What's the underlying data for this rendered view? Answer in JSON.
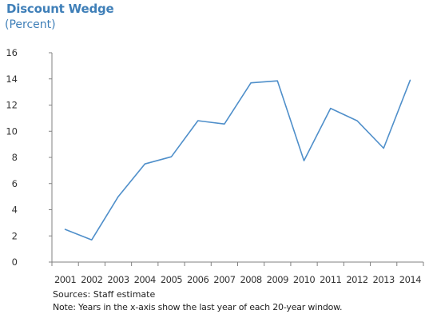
{
  "chart_data": {
    "type": "line",
    "title": "Discount Wedge",
    "subtitle": "(Percent)",
    "categories": [
      "2001",
      "2002",
      "2003",
      "2004",
      "2005",
      "2006",
      "2007",
      "2008",
      "2009",
      "2010",
      "2011",
      "2012",
      "2013",
      "2014"
    ],
    "series": [
      {
        "values": [
          2.5,
          1.7,
          5.0,
          7.5,
          8.05,
          10.8,
          10.55,
          13.7,
          13.85,
          7.75,
          11.75,
          10.8,
          8.7,
          13.9
        ]
      }
    ],
    "yticks": [
      0,
      2,
      4,
      6,
      8,
      10,
      12,
      14,
      16
    ],
    "ylim": [
      0,
      16
    ],
    "xlabel": "",
    "ylabel": "",
    "grid": false,
    "line_color": "#4f8fca"
  },
  "notes": {
    "sources": "Sources: Staff estimate",
    "note": "Note: Years in the x-axis show the last year of each 20-year window."
  }
}
